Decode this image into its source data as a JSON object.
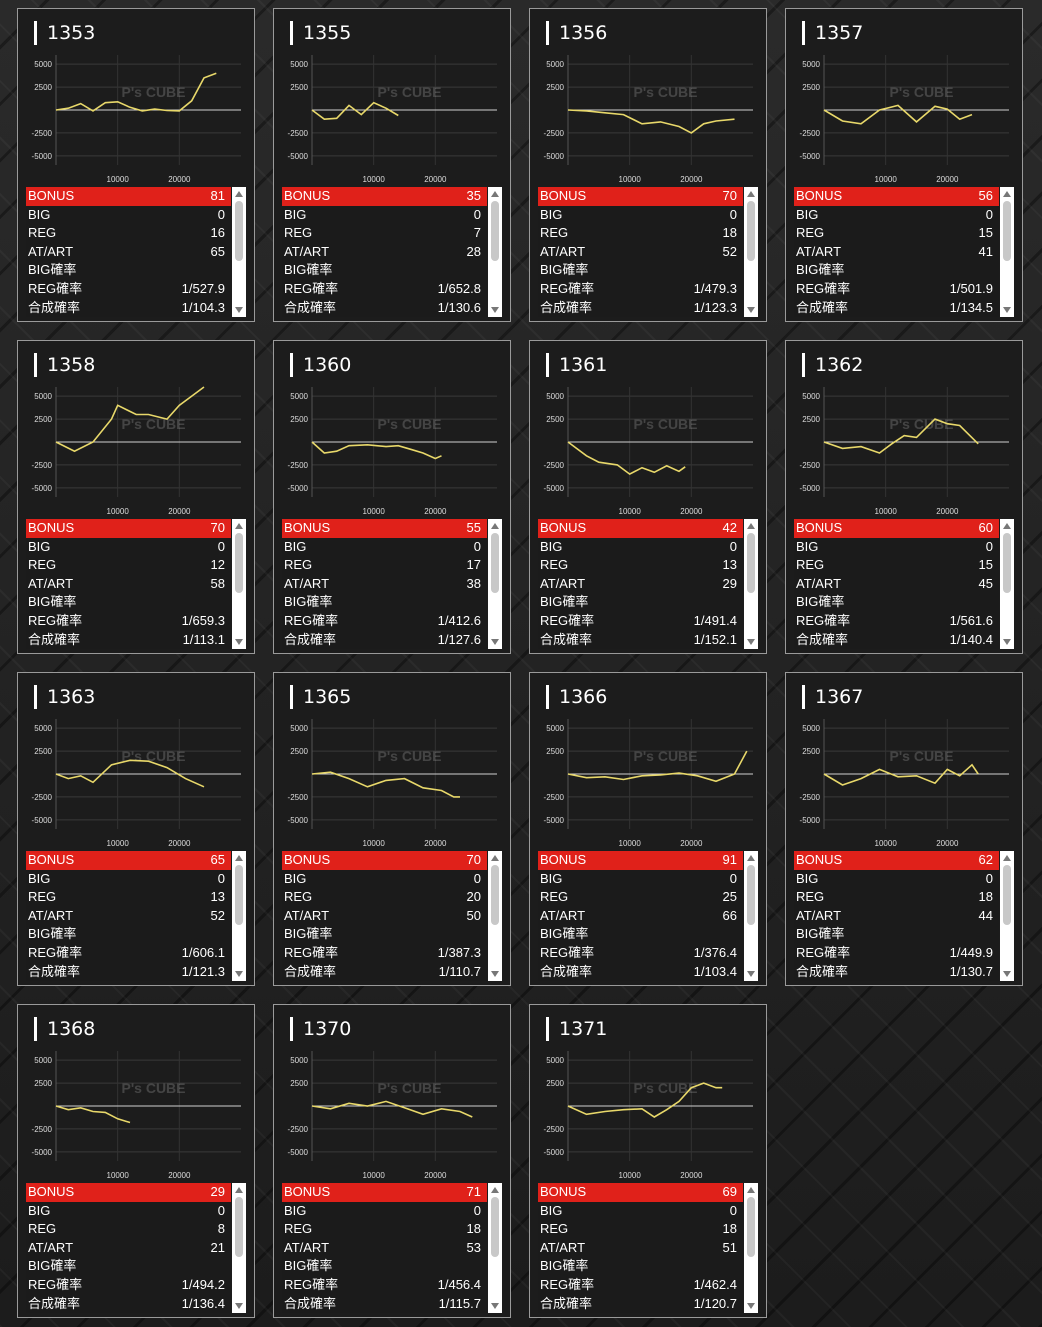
{
  "labels": {
    "bonus": "BONUS",
    "big": "BIG",
    "reg": "REG",
    "atart": "AT/ART",
    "big_prob": "BIG確率",
    "reg_prob": "REG確率",
    "total_prob": "合成確率"
  },
  "watermark": "P's CUBE",
  "chart_axes": {
    "y_ticks": [
      "5000",
      "2500",
      "-2500",
      "-5000"
    ],
    "x_ticks": [
      "10000",
      "20000"
    ],
    "ylim": [
      -6000,
      6000
    ],
    "xlim": [
      0,
      30000
    ]
  },
  "colors": {
    "line": "#e8d86a",
    "accent": "#e0211a"
  },
  "machines": [
    {
      "no": "1353",
      "bonus": "81",
      "big": "0",
      "reg": "16",
      "atart": "65",
      "big_prob": "",
      "reg_prob": "1/527.9",
      "total_prob": "1/104.3",
      "chart_data": {
        "type": "line",
        "x": [
          0,
          2000,
          4000,
          6000,
          8000,
          10000,
          12000,
          14000,
          16000,
          18000,
          20000,
          22000,
          24000,
          26000
        ],
        "y": [
          0,
          200,
          700,
          -100,
          800,
          900,
          300,
          -100,
          100,
          -50,
          -100,
          1000,
          3500,
          4000
        ]
      }
    },
    {
      "no": "1355",
      "bonus": "35",
      "big": "0",
      "reg": "7",
      "atart": "28",
      "big_prob": "",
      "reg_prob": "1/652.8",
      "total_prob": "1/130.6",
      "chart_data": {
        "type": "line",
        "x": [
          0,
          2000,
          4000,
          6000,
          8000,
          10000,
          12000,
          14000
        ],
        "y": [
          0,
          -1000,
          -900,
          500,
          -500,
          800,
          200,
          -600
        ]
      }
    },
    {
      "no": "1356",
      "bonus": "70",
      "big": "0",
      "reg": "18",
      "atart": "52",
      "big_prob": "",
      "reg_prob": "1/479.3",
      "total_prob": "1/123.3",
      "chart_data": {
        "type": "line",
        "x": [
          0,
          3000,
          6000,
          9000,
          12000,
          15000,
          18000,
          20000,
          22000,
          24000,
          27000
        ],
        "y": [
          0,
          -100,
          -300,
          -500,
          -1500,
          -1300,
          -1800,
          -2500,
          -1500,
          -1200,
          -1000
        ]
      }
    },
    {
      "no": "1357",
      "bonus": "56",
      "big": "0",
      "reg": "15",
      "atart": "41",
      "big_prob": "",
      "reg_prob": "1/501.9",
      "total_prob": "1/134.5",
      "chart_data": {
        "type": "line",
        "x": [
          0,
          3000,
          6000,
          9000,
          12000,
          15000,
          18000,
          20000,
          22000,
          24000
        ],
        "y": [
          0,
          -1200,
          -1500,
          0,
          500,
          -1300,
          400,
          100,
          -1000,
          -500
        ]
      }
    },
    {
      "no": "1358",
      "bonus": "70",
      "big": "0",
      "reg": "12",
      "atart": "58",
      "big_prob": "",
      "reg_prob": "1/659.3",
      "total_prob": "1/113.1",
      "chart_data": {
        "type": "line",
        "x": [
          0,
          3000,
          6000,
          9000,
          10000,
          13000,
          15000,
          18000,
          20000,
          23000,
          24000
        ],
        "y": [
          0,
          -1000,
          0,
          2500,
          4000,
          3000,
          3000,
          2500,
          4000,
          5500,
          6000
        ]
      }
    },
    {
      "no": "1360",
      "bonus": "55",
      "big": "0",
      "reg": "17",
      "atart": "38",
      "big_prob": "",
      "reg_prob": "1/412.6",
      "total_prob": "1/127.6",
      "chart_data": {
        "type": "line",
        "x": [
          0,
          2000,
          4000,
          6000,
          9000,
          12000,
          14000,
          16000,
          18000,
          20000,
          21000
        ],
        "y": [
          0,
          -1200,
          -1000,
          -400,
          -300,
          -500,
          -400,
          -800,
          -1200,
          -1800,
          -1500
        ]
      }
    },
    {
      "no": "1361",
      "bonus": "42",
      "big": "0",
      "reg": "13",
      "atart": "29",
      "big_prob": "",
      "reg_prob": "1/491.4",
      "total_prob": "1/152.1",
      "chart_data": {
        "type": "line",
        "x": [
          0,
          3000,
          5000,
          8000,
          10000,
          12000,
          14000,
          16000,
          18000,
          19000
        ],
        "y": [
          0,
          -1500,
          -2200,
          -2500,
          -3500,
          -2800,
          -3300,
          -2600,
          -3200,
          -2700
        ]
      }
    },
    {
      "no": "1362",
      "bonus": "60",
      "big": "0",
      "reg": "15",
      "atart": "45",
      "big_prob": "",
      "reg_prob": "1/561.6",
      "total_prob": "1/140.4",
      "chart_data": {
        "type": "line",
        "x": [
          0,
          3000,
          6000,
          9000,
          11000,
          13000,
          15000,
          18000,
          20000,
          22000,
          25000
        ],
        "y": [
          0,
          -700,
          -500,
          -1200,
          -200,
          700,
          500,
          2500,
          2000,
          1800,
          -200
        ]
      }
    },
    {
      "no": "1363",
      "bonus": "65",
      "big": "0",
      "reg": "13",
      "atart": "52",
      "big_prob": "",
      "reg_prob": "1/606.1",
      "total_prob": "1/121.3",
      "chart_data": {
        "type": "line",
        "x": [
          0,
          2000,
          4000,
          6000,
          9000,
          12000,
          15000,
          18000,
          21000,
          24000
        ],
        "y": [
          0,
          -500,
          -200,
          -900,
          1000,
          1500,
          1400,
          700,
          -500,
          -1400
        ]
      }
    },
    {
      "no": "1365",
      "bonus": "70",
      "big": "0",
      "reg": "20",
      "atart": "50",
      "big_prob": "",
      "reg_prob": "1/387.3",
      "total_prob": "1/110.7",
      "chart_data": {
        "type": "line",
        "x": [
          0,
          3000,
          6000,
          9000,
          12000,
          15000,
          18000,
          21000,
          23000,
          24000
        ],
        "y": [
          0,
          200,
          -500,
          -1400,
          -700,
          -500,
          -1500,
          -1800,
          -2500,
          -2500
        ]
      }
    },
    {
      "no": "1366",
      "bonus": "91",
      "big": "0",
      "reg": "25",
      "atart": "66",
      "big_prob": "",
      "reg_prob": "1/376.4",
      "total_prob": "1/103.4",
      "chart_data": {
        "type": "line",
        "x": [
          0,
          3000,
          6000,
          9000,
          12000,
          15000,
          18000,
          21000,
          24000,
          27000,
          29000
        ],
        "y": [
          0,
          -400,
          -300,
          -600,
          -200,
          -100,
          100,
          -200,
          -800,
          0,
          2500
        ]
      }
    },
    {
      "no": "1367",
      "bonus": "62",
      "big": "0",
      "reg": "18",
      "atart": "44",
      "big_prob": "",
      "reg_prob": "1/449.9",
      "total_prob": "1/130.7",
      "chart_data": {
        "type": "line",
        "x": [
          0,
          3000,
          6000,
          9000,
          12000,
          15000,
          18000,
          20000,
          22000,
          24000,
          25000
        ],
        "y": [
          0,
          -1200,
          -500,
          500,
          -300,
          -200,
          -1000,
          500,
          -200,
          1000,
          0
        ]
      }
    },
    {
      "no": "1368",
      "bonus": "29",
      "big": "0",
      "reg": "8",
      "atart": "21",
      "big_prob": "",
      "reg_prob": "1/494.2",
      "total_prob": "1/136.4",
      "chart_data": {
        "type": "line",
        "x": [
          0,
          2000,
          4000,
          6000,
          8000,
          10000,
          12000
        ],
        "y": [
          0,
          -400,
          -200,
          -600,
          -700,
          -1400,
          -1800
        ]
      }
    },
    {
      "no": "1370",
      "bonus": "71",
      "big": "0",
      "reg": "18",
      "atart": "53",
      "big_prob": "",
      "reg_prob": "1/456.4",
      "total_prob": "1/115.7",
      "chart_data": {
        "type": "line",
        "x": [
          0,
          3000,
          6000,
          9000,
          12000,
          15000,
          18000,
          21000,
          24000,
          26000
        ],
        "y": [
          0,
          -300,
          300,
          0,
          500,
          -200,
          -900,
          -300,
          -600,
          -1200
        ]
      }
    },
    {
      "no": "1371",
      "bonus": "69",
      "big": "0",
      "reg": "18",
      "atart": "51",
      "big_prob": "",
      "reg_prob": "1/462.4",
      "total_prob": "1/120.7",
      "chart_data": {
        "type": "line",
        "x": [
          0,
          3000,
          6000,
          9000,
          12000,
          14000,
          16000,
          18000,
          20000,
          22000,
          24000,
          25000
        ],
        "y": [
          0,
          -900,
          -600,
          -400,
          -300,
          -1200,
          -400,
          500,
          2000,
          2500,
          2000,
          2000
        ]
      }
    }
  ]
}
